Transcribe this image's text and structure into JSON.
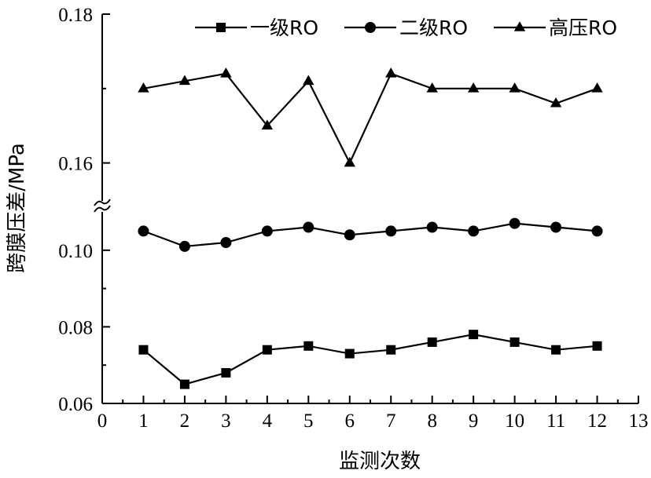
{
  "chart_data": {
    "type": "line",
    "title": "",
    "xlabel": "监测次数",
    "ylabel": "跨膜压差/MPa",
    "x": [
      1,
      2,
      3,
      4,
      5,
      6,
      7,
      8,
      9,
      10,
      11,
      12
    ],
    "xlim": [
      0,
      13
    ],
    "xticks": [
      0,
      1,
      2,
      3,
      4,
      5,
      6,
      7,
      8,
      9,
      10,
      11,
      12,
      13
    ],
    "y_axis_break": {
      "lower_range": [
        0.06,
        0.11
      ],
      "upper_range": [
        0.155,
        0.18
      ]
    },
    "yticks": [
      0.06,
      0.08,
      0.1,
      0.16,
      0.18
    ],
    "ytick_labels": [
      "0.06",
      "0.08",
      "0.10",
      "0.16",
      "0.18"
    ],
    "legend_position": "top-right",
    "series": [
      {
        "name": "一级RO",
        "marker": "square",
        "values": [
          0.074,
          0.065,
          0.068,
          0.074,
          0.075,
          0.073,
          0.074,
          0.076,
          0.078,
          0.076,
          0.074,
          0.075
        ]
      },
      {
        "name": "二级RO",
        "marker": "circle",
        "values": [
          0.105,
          0.101,
          0.102,
          0.105,
          0.106,
          0.104,
          0.105,
          0.106,
          0.105,
          0.107,
          0.106,
          0.105
        ]
      },
      {
        "name": "高压RO",
        "marker": "triangle",
        "values": [
          0.17,
          0.171,
          0.172,
          0.165,
          0.171,
          0.16,
          0.172,
          0.17,
          0.17,
          0.17,
          0.168,
          0.17
        ]
      }
    ]
  }
}
